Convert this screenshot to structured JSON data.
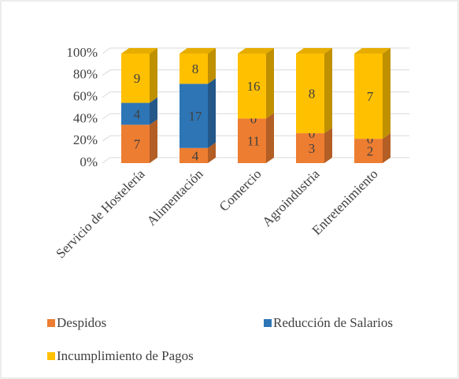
{
  "chart_data": {
    "type": "bar",
    "stacked": "percent",
    "categories": [
      "Servicio de Hostelería",
      "Alimentación",
      "Comercio",
      "Agroindustria",
      "Entretenimiento"
    ],
    "series": [
      {
        "name": "Despidos",
        "color": "#ed7d31",
        "values": [
          7,
          4,
          11,
          3,
          2
        ]
      },
      {
        "name": "Reducción de Salarios",
        "color": "#2e75b6",
        "values": [
          4,
          17,
          0,
          0,
          0
        ]
      },
      {
        "name": "Incumplimiento de Pagos",
        "color": "#ffc000",
        "values": [
          9,
          8,
          16,
          8,
          7
        ]
      }
    ],
    "ylim": [
      0,
      100
    ],
    "yticks": [
      {
        "value": 0,
        "label": "0%"
      },
      {
        "value": 20,
        "label": "20%"
      },
      {
        "value": 40,
        "label": "40%"
      },
      {
        "value": 60,
        "label": "60%"
      },
      {
        "value": 80,
        "label": "80%"
      },
      {
        "value": 100,
        "label": "100%"
      }
    ],
    "grid": true,
    "legend": "bottom"
  }
}
